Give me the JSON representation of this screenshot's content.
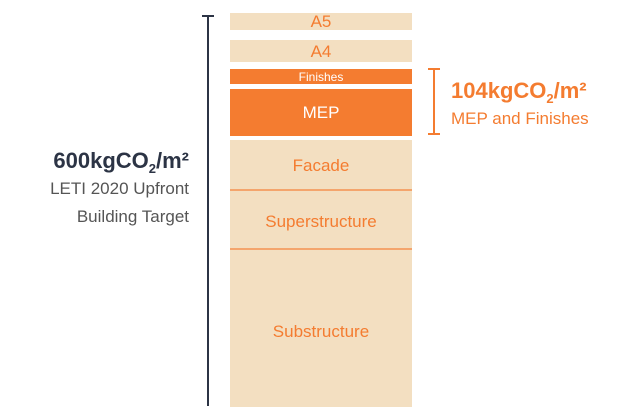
{
  "segments": [
    {
      "key": "a5",
      "label": "A5"
    },
    {
      "key": "a4",
      "label": "A4"
    },
    {
      "key": "finishes",
      "label": "Finishes"
    },
    {
      "key": "mep",
      "label": "MEP"
    },
    {
      "key": "facade",
      "label": "Facade"
    },
    {
      "key": "superstructure",
      "label": "Superstructure"
    },
    {
      "key": "substructure",
      "label": "Substructure"
    }
  ],
  "target": {
    "value": "600kgCO",
    "sub": "2",
    "unit": "/m²",
    "line1": "LETI 2020 Upfront",
    "line2": "Building Target"
  },
  "highlight": {
    "value": "104kgCO",
    "sub": "2",
    "unit": "/m²",
    "caption": "MEP and Finishes"
  },
  "colors": {
    "beige": "#f3dfc1",
    "orange": "#f47c30",
    "dark": "#2c3445",
    "grey": "#555555"
  }
}
